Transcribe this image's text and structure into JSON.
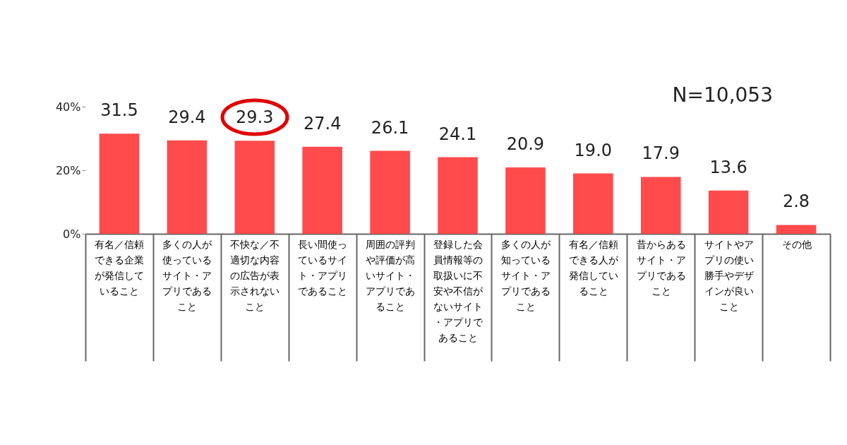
{
  "chart_data": {
    "type": "bar",
    "categories": [
      "有名／信頼できる企業が発信していること",
      "多くの人が使っているサイト・アプリであること",
      "不快な／不適切な内容の広告が表示されないこと",
      "長い間使っているサイト・アプリであること",
      "周囲の評判や評価が高いサイト・アプリであること",
      "登録した会員情報等の取扱いに不安や不信がないサイト・アプリであること",
      "多くの人が知っているサイト・アプリであること",
      "有名／信頼できる人が発信していること",
      "昔からあるサイト・アプリであること",
      "サイトやアプリの使い勝手やデザインが良いこと",
      "その他"
    ],
    "values": [
      31.5,
      29.4,
      29.3,
      27.4,
      26.1,
      24.1,
      20.9,
      19.0,
      17.9,
      13.6,
      2.8
    ],
    "value_labels": [
      "31.5",
      "29.4",
      "29.3",
      "27.4",
      "26.1",
      "24.1",
      "20.9",
      "19.0",
      "17.9",
      "13.6",
      "2.8"
    ],
    "color": "#ff4b4b",
    "ylim": [
      0,
      40
    ],
    "yticks": [
      {
        "value": 0,
        "label": "0%"
      },
      {
        "value": 20,
        "label": "20%"
      },
      {
        "value": 40,
        "label": "40%"
      }
    ],
    "grid": false,
    "annotations": [
      "N=10,053"
    ]
  }
}
